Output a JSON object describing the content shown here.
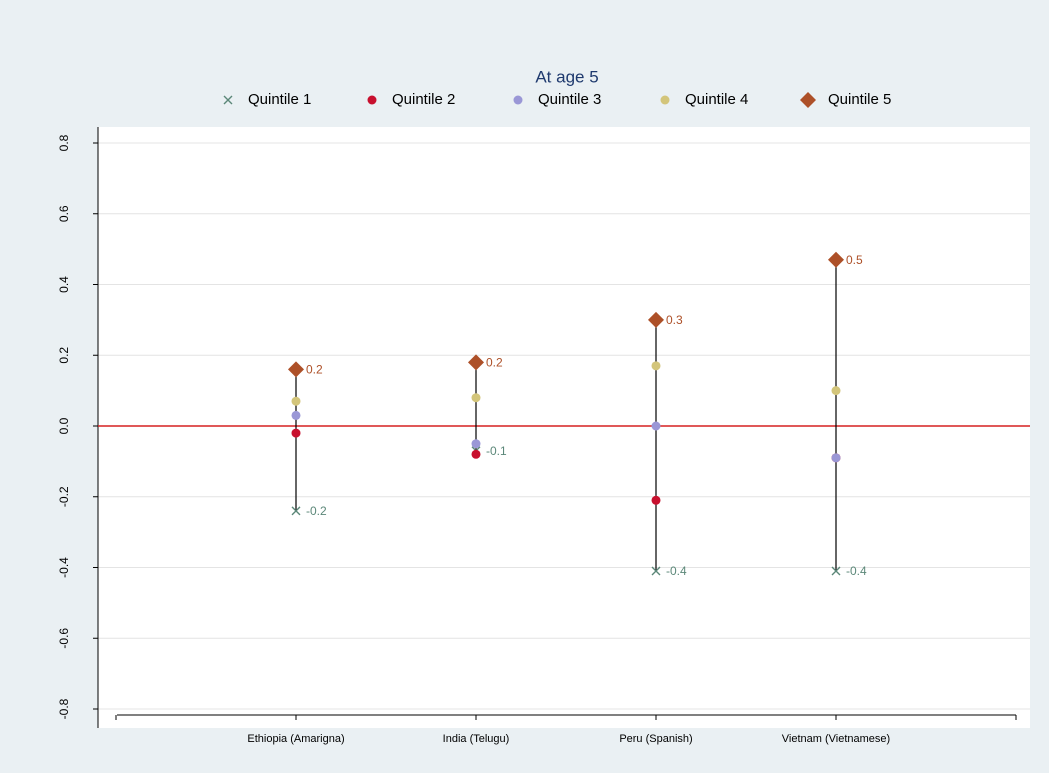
{
  "chart_data": {
    "type": "dot-range",
    "title": "At age 5",
    "categories": [
      "Ethiopia (Amarigna)",
      "India (Telugu)",
      "Peru (Spanish)",
      "Vietnam (Vietnamese)"
    ],
    "series": [
      {
        "name": "Quintile 1",
        "color": "#5b8778",
        "marker": "x",
        "values": [
          -0.24,
          -0.07,
          -0.41,
          -0.41
        ],
        "value_labels": [
          "-0.2",
          "-0.1",
          "-0.4",
          "-0.4"
        ]
      },
      {
        "name": "Quintile 2",
        "color": "#c8102e",
        "marker": "circle",
        "values": [
          -0.02,
          -0.08,
          -0.21,
          -0.09
        ]
      },
      {
        "name": "Quintile 3",
        "color": "#9a97d6",
        "marker": "circle",
        "values": [
          0.03,
          -0.05,
          0,
          -0.09
        ]
      },
      {
        "name": "Quintile 4",
        "color": "#d3c57a",
        "marker": "circle",
        "values": [
          0.07,
          0.08,
          0.17,
          0.1
        ]
      },
      {
        "name": "Quintile 5",
        "color": "#ad5028",
        "marker": "diamond",
        "values": [
          0.16,
          0.18,
          0.3,
          0.47
        ],
        "value_labels": [
          "0.2",
          "0.2",
          "0.3",
          "0.5"
        ]
      }
    ],
    "ylim": [
      -0.8,
      0.8
    ],
    "yticks": [
      -0.8,
      -0.6,
      -0.4,
      -0.2,
      {
        "value": 0,
        "label": "0.0"
      },
      0.2,
      0.4,
      0.6,
      0.8
    ],
    "grid": true,
    "reference_line": {
      "value": 0,
      "color": "#d62020"
    },
    "legend": "top"
  }
}
